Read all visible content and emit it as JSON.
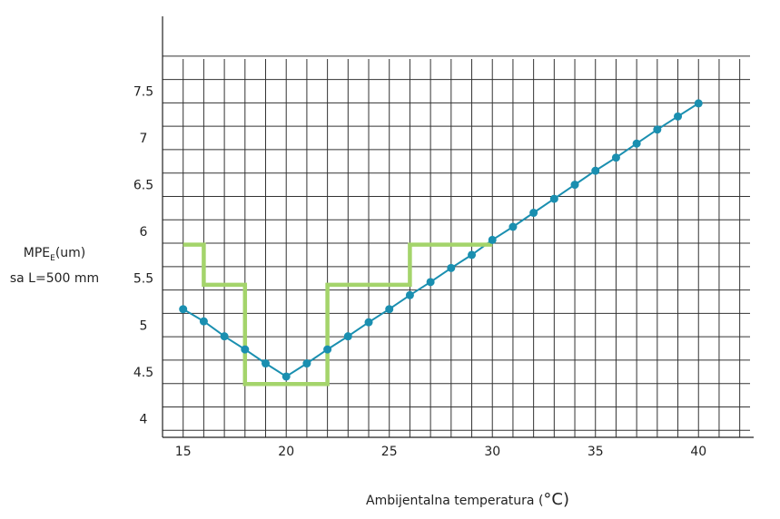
{
  "chart_data": {
    "type": "line",
    "ylabel_main": "MPE",
    "ylabel_sub": "E",
    "ylabel_unit": "(um)",
    "ylabel_line2": "sa L=500 mm",
    "xlabel_text": "Ambijentalna temperatura (",
    "xlabel_unit": "°C",
    "xlabel_close": ")",
    "x_ticks": [
      "15",
      "20",
      "25",
      "30",
      "35",
      "40"
    ],
    "y_ticks": [
      "4",
      "4.5",
      "5",
      "5.5",
      "6",
      "6.5",
      "7",
      "7.5"
    ],
    "xlim": [
      14,
      42.5
    ],
    "ylim": [
      3.8,
      8.3
    ],
    "grid": true,
    "series": [
      {
        "color": "#1a8fb0",
        "style": "line-markers",
        "x": [
          15,
          16,
          17,
          18,
          19,
          20,
          21,
          22,
          23,
          24,
          25,
          26,
          27,
          28,
          29,
          30,
          31,
          32,
          33,
          34,
          35,
          36,
          37,
          38,
          39,
          40
        ],
        "y": [
          5.17,
          5.04,
          4.88,
          4.74,
          4.59,
          4.45,
          4.59,
          4.74,
          4.88,
          5.03,
          5.17,
          5.32,
          5.46,
          5.61,
          5.75,
          5.91,
          6.05,
          6.2,
          6.35,
          6.5,
          6.65,
          6.79,
          6.94,
          7.09,
          7.23,
          7.37
        ]
      },
      {
        "color": "#a4d46b",
        "style": "step",
        "x": [
          15,
          16,
          16,
          18,
          18,
          22,
          22,
          26,
          26,
          30
        ],
        "y": [
          5.86,
          5.86,
          5.43,
          5.43,
          4.37,
          4.37,
          5.43,
          5.43,
          5.86,
          5.86
        ]
      }
    ]
  }
}
